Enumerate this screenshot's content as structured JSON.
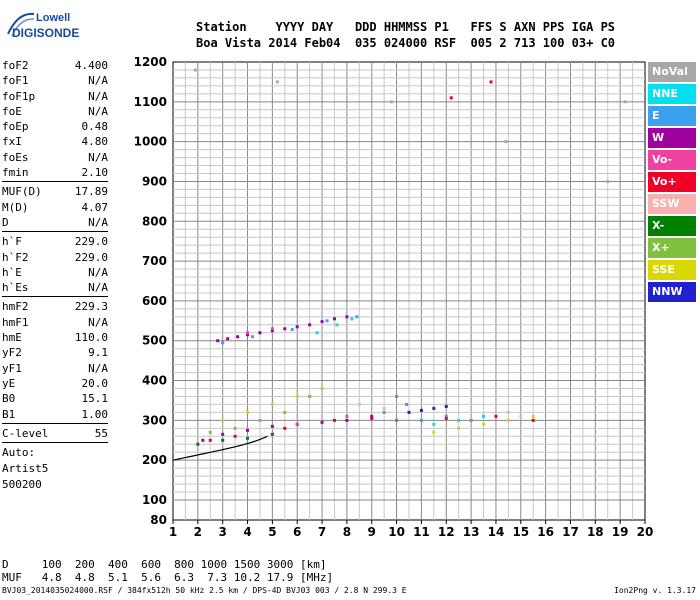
{
  "logo": {
    "line1": "Lowell",
    "line2": "DIGISONDE"
  },
  "header": {
    "row1": "Station    YYYY DAY   DDD HHMMSS P1   FFS S AXN PPS IGA PS",
    "row2": "Boa Vista 2014 Feb04  035 024000 RSF  005 2 713 100 03+ C0"
  },
  "params": [
    [
      {
        "k": "foF2",
        "v": "4.400"
      },
      {
        "k": "foF1",
        "v": "N/A"
      },
      {
        "k": "foF1p",
        "v": "N/A"
      },
      {
        "k": "foE",
        "v": "N/A"
      },
      {
        "k": "foEp",
        "v": "0.48"
      },
      {
        "k": "fxI",
        "v": "4.80"
      },
      {
        "k": "foEs",
        "v": "N/A"
      },
      {
        "k": "fmin",
        "v": "2.10"
      }
    ],
    [
      {
        "k": "MUF(D)",
        "v": "17.89"
      },
      {
        "k": "M(D)",
        "v": "4.07"
      },
      {
        "k": "D",
        "v": "N/A"
      }
    ],
    [
      {
        "k": "h`F",
        "v": "229.0"
      },
      {
        "k": "h`F2",
        "v": "229.0"
      },
      {
        "k": "h`E",
        "v": "N/A"
      },
      {
        "k": "h`Es",
        "v": "N/A"
      }
    ],
    [
      {
        "k": "hmF2",
        "v": "229.3"
      },
      {
        "k": "hmF1",
        "v": "N/A"
      },
      {
        "k": "hmE",
        "v": "110.0"
      },
      {
        "k": "yF2",
        "v": "9.1"
      },
      {
        "k": "yF1",
        "v": "N/A"
      },
      {
        "k": "yE",
        "v": "20.0"
      },
      {
        "k": "B0",
        "v": "15.1"
      },
      {
        "k": "B1",
        "v": "1.00"
      }
    ],
    [
      {
        "k": "C-level",
        "v": "55"
      }
    ]
  ],
  "auto": {
    "l1": "Auto:",
    "l2": "Artist5",
    "l3": "500200"
  },
  "legend": [
    {
      "label": "NoVal",
      "color": "#a8a8a8"
    },
    {
      "label": "NNE",
      "color": "#00e0f0"
    },
    {
      "label": "E",
      "color": "#3aa0f0"
    },
    {
      "label": "W",
      "color": "#a000a0"
    },
    {
      "label": "Vo-",
      "color": "#f040a0"
    },
    {
      "label": "Vo+",
      "color": "#f00028"
    },
    {
      "label": "SSW",
      "color": "#f8b0b0"
    },
    {
      "label": "X-",
      "color": "#008000"
    },
    {
      "label": "X+",
      "color": "#80c040"
    },
    {
      "label": "SSE",
      "color": "#d8d800"
    },
    {
      "label": "NNW",
      "color": "#2020d0"
    }
  ],
  "footer": {
    "row1": "D     100  200  400  600  800 1000 1500 3000 [km]",
    "row2": "MUF   4.8  4.8  5.1  5.6  6.3  7.3 10.2 17.9 [MHz]",
    "row3": "BVJ03_2014035024000.RSF / 384fx512h 50 kHz 2.5 km / DPS-4D BVJ03 003 / 2.8 N 299.3 E",
    "version": "Ion2Png v. 1.3.17"
  },
  "chart_data": {
    "type": "scatter",
    "xlim": [
      1,
      20
    ],
    "ylim": [
      80,
      1200
    ],
    "xticks": [
      1,
      2,
      3,
      4,
      5,
      6,
      7,
      8,
      9,
      10,
      11,
      12,
      13,
      14,
      15,
      16,
      17,
      18,
      19,
      20
    ],
    "yticks": [
      80,
      100,
      200,
      300,
      400,
      500,
      600,
      700,
      800,
      900,
      1000,
      1100,
      1200
    ],
    "grid": true,
    "legend_placement": "right",
    "series": [
      {
        "name": "W",
        "color": "#a000a0",
        "points": [
          [
            2.8,
            500
          ],
          [
            3.2,
            505
          ],
          [
            3.6,
            510
          ],
          [
            4.0,
            515
          ],
          [
            4.5,
            520
          ],
          [
            5.0,
            525
          ],
          [
            5.5,
            530
          ],
          [
            6.0,
            535
          ],
          [
            6.5,
            540
          ],
          [
            7.0,
            548
          ],
          [
            7.5,
            555
          ],
          [
            8.0,
            560
          ],
          [
            2.2,
            250
          ],
          [
            3.0,
            265
          ],
          [
            4.0,
            275
          ],
          [
            5.0,
            285
          ],
          [
            6.0,
            290
          ],
          [
            7.0,
            295
          ],
          [
            8.0,
            300
          ],
          [
            9.0,
            305
          ]
        ]
      },
      {
        "name": "E",
        "color": "#3aa0f0",
        "points": [
          [
            3.0,
            495
          ],
          [
            4.2,
            510
          ],
          [
            5.8,
            528
          ],
          [
            7.2,
            550
          ],
          [
            8.4,
            560
          ],
          [
            9.5,
            320
          ],
          [
            10.0,
            360
          ],
          [
            10.4,
            340
          ],
          [
            11.0,
            300
          ],
          [
            12.0,
            310
          ],
          [
            13.0,
            300
          ]
        ]
      },
      {
        "name": "NNE",
        "color": "#00e0f0",
        "points": [
          [
            6.8,
            520
          ],
          [
            7.6,
            540
          ],
          [
            8.2,
            555
          ],
          [
            10.0,
            300
          ],
          [
            11.5,
            290
          ],
          [
            12.5,
            300
          ],
          [
            13.5,
            310
          ]
        ]
      },
      {
        "name": "Vo+",
        "color": "#f00028",
        "points": [
          [
            2.5,
            250
          ],
          [
            3.5,
            260
          ],
          [
            5.5,
            280
          ],
          [
            7.5,
            300
          ],
          [
            9.0,
            310
          ],
          [
            12.0,
            305
          ],
          [
            14.0,
            310
          ],
          [
            15.5,
            300
          ],
          [
            13.8,
            1150
          ],
          [
            12.2,
            1110
          ]
        ]
      },
      {
        "name": "Vo-",
        "color": "#f040a0",
        "points": [
          [
            4.0,
            520
          ],
          [
            5.0,
            530
          ],
          [
            6.0,
            290
          ],
          [
            8.0,
            310
          ],
          [
            10.0,
            300
          ]
        ]
      },
      {
        "name": "X-",
        "color": "#008000",
        "points": [
          [
            2.0,
            240
          ],
          [
            3.0,
            250
          ],
          [
            4.0,
            255
          ],
          [
            5.0,
            265
          ]
        ]
      },
      {
        "name": "X+",
        "color": "#80c040",
        "points": [
          [
            2.5,
            270
          ],
          [
            3.5,
            280
          ],
          [
            4.5,
            300
          ],
          [
            5.5,
            320
          ],
          [
            6.5,
            360
          ]
        ]
      },
      {
        "name": "SSE",
        "color": "#d8d800",
        "points": [
          [
            3.0,
            300
          ],
          [
            4.0,
            320
          ],
          [
            5.0,
            340
          ],
          [
            6.0,
            360
          ],
          [
            7.0,
            380
          ],
          [
            11.5,
            270
          ],
          [
            12.5,
            280
          ],
          [
            13.5,
            290
          ],
          [
            14.5,
            300
          ],
          [
            15.5,
            310
          ]
        ]
      },
      {
        "name": "SSW",
        "color": "#f8b0b0",
        "points": [
          [
            8.5,
            340
          ],
          [
            9.5,
            330
          ],
          [
            14.5,
            320
          ],
          [
            15.0,
            310
          ]
        ]
      },
      {
        "name": "NNW",
        "color": "#2020d0",
        "points": [
          [
            10.5,
            320
          ],
          [
            11.0,
            325
          ],
          [
            11.5,
            330
          ],
          [
            12.0,
            335
          ]
        ]
      },
      {
        "name": "NoVal",
        "color": "#a8a8a8",
        "points": [
          [
            1.9,
            1180
          ],
          [
            5.2,
            1150
          ],
          [
            9.8,
            1100
          ],
          [
            14.4,
            1000
          ],
          [
            18.5,
            900
          ],
          [
            19.2,
            1100
          ]
        ]
      }
    ]
  }
}
